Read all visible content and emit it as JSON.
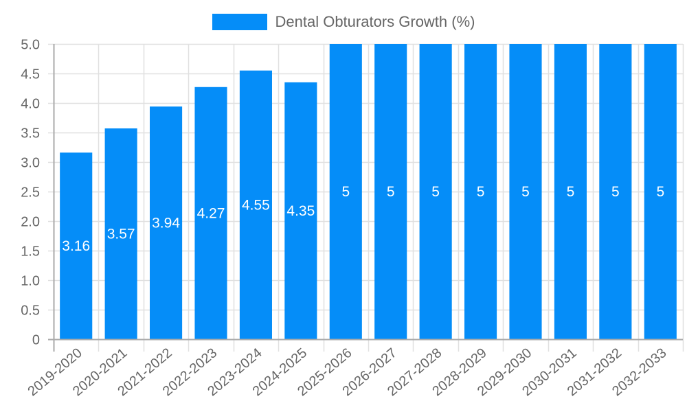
{
  "chart_data": {
    "type": "bar",
    "title": "",
    "xlabel": "",
    "ylabel": "",
    "ylim": [
      0,
      5
    ],
    "yticks": [
      "0",
      "0.5",
      "1.0",
      "1.5",
      "2.0",
      "2.5",
      "3.0",
      "3.5",
      "4.0",
      "4.5",
      "5.0"
    ],
    "grid": true,
    "legend_position": "top",
    "categories": [
      "2019-2020",
      "2020-2021",
      "2021-2022",
      "2022-2023",
      "2023-2024",
      "2024-2025",
      "2025-2026",
      "2026-2027",
      "2027-2028",
      "2028-2029",
      "2029-2030",
      "2030-2031",
      "2031-2032",
      "2032-2033"
    ],
    "series": [
      {
        "name": "Dental Obturators Growth (%)",
        "color": "#058DF8",
        "values": [
          3.16,
          3.57,
          3.94,
          4.27,
          4.55,
          4.35,
          5,
          5,
          5,
          5,
          5,
          5,
          5,
          5
        ],
        "labels": [
          "3.16",
          "3.57",
          "3.94",
          "4.27",
          "4.55",
          "4.35",
          "5",
          "5",
          "5",
          "5",
          "5",
          "5",
          "5",
          "5"
        ]
      }
    ]
  },
  "legend": {
    "label": "Dental Obturators Growth (%)",
    "color": "#058DF8"
  },
  "colors": {
    "bar": "#058DF8",
    "axis": "#aaaaaa",
    "grid": "#e0e0e0",
    "tick_text": "#666666",
    "data_label": "#ffffff"
  }
}
